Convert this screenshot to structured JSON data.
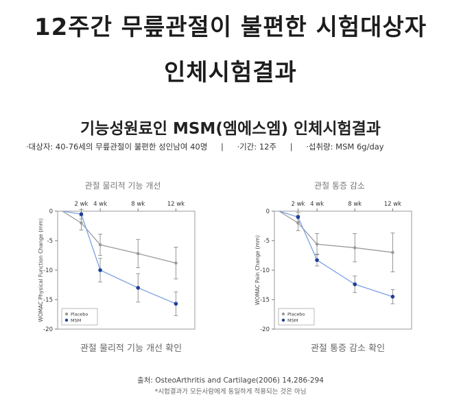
{
  "header": {
    "line1": "12주간 무릎관절이 불편한 시험대상자",
    "line2": "인체시험결과"
  },
  "subtitle": "기능성원료인 MSM(엠에스엠) 인체시험결과",
  "info": {
    "subjects": "·대상자: 40-76세의 무릎관절이 불편한 성인남여 40명",
    "separator": "|",
    "period": "·기간: 12주",
    "dose": "·섭취량: MSM 6g/day"
  },
  "footer": {
    "source": "출처: OsteoArthritis and Cartilage(2006) 14,286-294",
    "note": "*시험결과가 모든사람에게 동일하게 적용되는 것은 아님"
  },
  "colors": {
    "placebo": "#9a9a9a",
    "msm": "#1f3d99",
    "msm_line": "#7aa0e0"
  },
  "chart_data": [
    {
      "type": "line",
      "title": "관절 물리적 기능 개선",
      "caption": "관절 물리적 기능 개선 확인",
      "ylabel": "WOMAC Physical Function Change (mm)",
      "x_tick_labels": [
        "2 wk",
        "4 wk",
        "8 wk",
        "12 wk"
      ],
      "x": [
        0,
        2,
        4,
        8,
        12
      ],
      "ylim": [
        -20,
        0
      ],
      "yticks": [
        0,
        -5,
        -10,
        -15,
        -20
      ],
      "legend_position": "bottom-left",
      "grid": false,
      "series": [
        {
          "name": "Placebo",
          "values": [
            0,
            -2.0,
            -5.7,
            -7.2,
            -8.8
          ],
          "errors": [
            0,
            1.2,
            1.8,
            2.4,
            2.7
          ]
        },
        {
          "name": "MSM",
          "values": [
            0,
            -0.5,
            -10.0,
            -13.0,
            -15.7
          ],
          "errors": [
            0,
            0.8,
            2.0,
            2.4,
            2.0
          ]
        }
      ]
    },
    {
      "type": "line",
      "title": "관절 통증 감소",
      "caption": "관절 통증 감소 확인",
      "ylabel": "WOMAC Pain Change (mm)",
      "x_tick_labels": [
        "2 wk",
        "4 wk",
        "8 wk",
        "12 wk"
      ],
      "x": [
        0,
        2,
        4,
        8,
        12
      ],
      "ylim": [
        -20,
        0
      ],
      "yticks": [
        0,
        -5,
        -10,
        -15,
        -20
      ],
      "legend_position": "bottom-left",
      "grid": false,
      "series": [
        {
          "name": "Placebo",
          "values": [
            0,
            -2.0,
            -5.6,
            -6.2,
            -7.0
          ],
          "errors": [
            0,
            1.3,
            1.8,
            2.4,
            3.3
          ]
        },
        {
          "name": "MSM",
          "values": [
            0,
            -1.0,
            -8.3,
            -12.4,
            -14.5
          ],
          "errors": [
            0,
            0.8,
            1.0,
            1.4,
            1.2
          ]
        }
      ]
    }
  ]
}
